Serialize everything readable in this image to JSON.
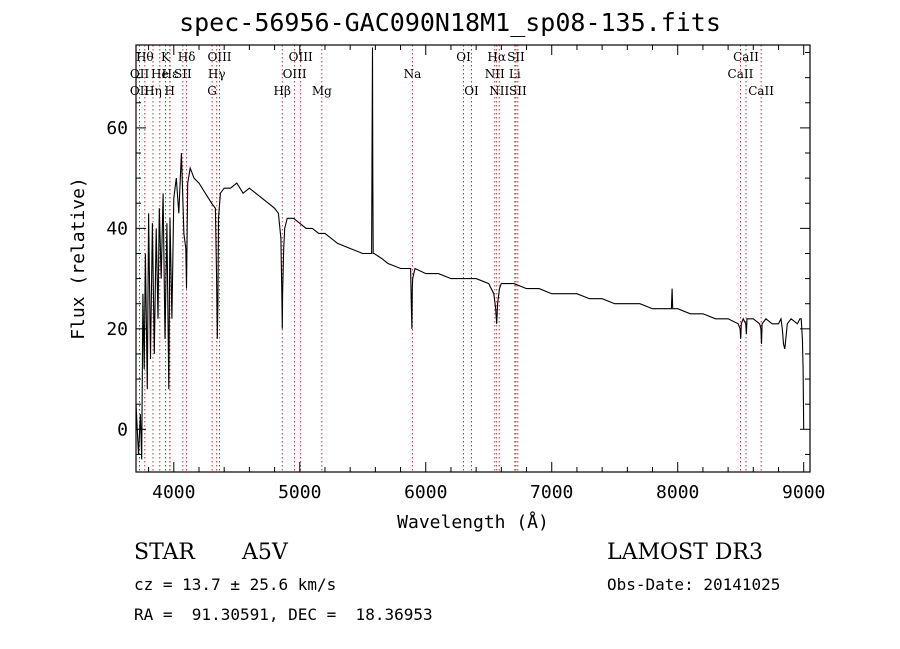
{
  "title": "spec-56956-GAC090N18M1_sp08-135.fits",
  "info": {
    "class": "STAR",
    "subclass": "A5V",
    "survey": "LAMOST DR3",
    "cz": "cz = 13.7 ± 25.6 km/s",
    "obs_date": "Obs-Date: 20141025",
    "coords": "RA =  91.30591, DEC =  18.36953"
  },
  "colors": {
    "line_marker": "#aa2222",
    "spectrum": "#000000"
  },
  "chart_data": {
    "type": "line",
    "title": "spec-56956-GAC090N18M1_sp08-135.fits",
    "xlabel": "Wavelength (Å)",
    "ylabel": "Flux (relative)",
    "xlim": [
      3700,
      9050
    ],
    "ylim": [
      -8.5,
      76.5
    ],
    "xticks": [
      4000,
      5000,
      6000,
      7000,
      8000,
      9000
    ],
    "yticks": [
      0,
      20,
      40,
      60
    ],
    "series": [
      {
        "name": "flux",
        "x": [
          3700,
          3720,
          3735,
          3745,
          3755,
          3765,
          3775,
          3790,
          3800,
          3815,
          3830,
          3845,
          3860,
          3875,
          3885,
          3900,
          3915,
          3930,
          3945,
          3960,
          3970,
          3985,
          4000,
          4020,
          4040,
          4060,
          4080,
          4095,
          4101,
          4110,
          4130,
          4160,
          4200,
          4250,
          4300,
          4330,
          4340,
          4345,
          4350,
          4355,
          4370,
          4400,
          4450,
          4500,
          4550,
          4600,
          4650,
          4700,
          4750,
          4800,
          4830,
          4850,
          4858,
          4861,
          4864,
          4872,
          4880,
          4900,
          4950,
          5000,
          5050,
          5100,
          5150,
          5200,
          5300,
          5400,
          5500,
          5570,
          5575,
          5577,
          5580,
          5583,
          5590,
          5650,
          5700,
          5800,
          5880,
          5885,
          5890,
          5893,
          5896,
          5905,
          5915,
          6000,
          6100,
          6200,
          6300,
          6400,
          6500,
          6540,
          6555,
          6563,
          6570,
          6585,
          6600,
          6700,
          6800,
          6900,
          7000,
          7100,
          7200,
          7300,
          7400,
          7500,
          7600,
          7700,
          7800,
          7900,
          7950,
          7955,
          7960,
          7970,
          8000,
          8100,
          8200,
          8300,
          8400,
          8480,
          8495,
          8500,
          8505,
          8520,
          8540,
          8545,
          8550,
          8600,
          8650,
          8660,
          8665,
          8670,
          8700,
          8750,
          8800,
          8820,
          8830,
          8840,
          8850,
          8870,
          8900,
          8950,
          8970,
          8980,
          8990,
          8995,
          9000
        ],
        "values": [
          5,
          -5,
          3,
          -6,
          27,
          12,
          35,
          8,
          43,
          14,
          41,
          15,
          40,
          22,
          44,
          30,
          47,
          18,
          41,
          8,
          42,
          22,
          46,
          50,
          43,
          55,
          39,
          36,
          28,
          49,
          52,
          50,
          49,
          47,
          45,
          44,
          30,
          18,
          25,
          42,
          47,
          48,
          48,
          49,
          47,
          48,
          47,
          46,
          45,
          44,
          43,
          38,
          26,
          20,
          27,
          36,
          40,
          42,
          42,
          41,
          40,
          40,
          39,
          39,
          37,
          36,
          35,
          35,
          63,
          76,
          50,
          35,
          35,
          34,
          33,
          32,
          32,
          25,
          20,
          28,
          30,
          31,
          32,
          31,
          31,
          30,
          30,
          30,
          29,
          27,
          24,
          21,
          25,
          28,
          29,
          29,
          28,
          28,
          27,
          27,
          27,
          26,
          26,
          25,
          25,
          25,
          24,
          24,
          24,
          28,
          24,
          24,
          24,
          23,
          23,
          22,
          22,
          21,
          20,
          18,
          21,
          22,
          21,
          19,
          22,
          22,
          21,
          20,
          17,
          21,
          22,
          21,
          21,
          22,
          20,
          17,
          16,
          21,
          22,
          21,
          22,
          22,
          18,
          12,
          0
        ]
      }
    ],
    "line_labels": [
      {
        "x": 3728,
        "label": "OII",
        "row": 1
      },
      {
        "x": 3728,
        "label": "OII",
        "row": 2
      },
      {
        "x": 3770,
        "label": "Hθ",
        "row": 0
      },
      {
        "x": 3835,
        "label": "Hη",
        "row": 2
      },
      {
        "x": 3889,
        "label": "He",
        "row": 1
      },
      {
        "x": 3934,
        "label": "K",
        "row": 0
      },
      {
        "x": 3968,
        "label": "H",
        "row": 2
      },
      {
        "x": 3970,
        "label": "Hε",
        "row": 1
      },
      {
        "x": 4072,
        "label": "SII",
        "row": 1
      },
      {
        "x": 4102,
        "label": "Hδ",
        "row": 0
      },
      {
        "x": 4304,
        "label": "G",
        "row": 2
      },
      {
        "x": 4341,
        "label": "Hγ",
        "row": 1
      },
      {
        "x": 4363,
        "label": "OIII",
        "row": 0
      },
      {
        "x": 4861,
        "label": "Hβ",
        "row": 2
      },
      {
        "x": 4959,
        "label": "OIII",
        "row": 1
      },
      {
        "x": 5007,
        "label": "OIII",
        "row": 0
      },
      {
        "x": 5175,
        "label": "Mg",
        "row": 2
      },
      {
        "x": 5894,
        "label": "Na",
        "row": 1
      },
      {
        "x": 6300,
        "label": "OI",
        "row": 0
      },
      {
        "x": 6363,
        "label": "OI",
        "row": 2
      },
      {
        "x": 6548,
        "label": "NII",
        "row": 1
      },
      {
        "x": 6563,
        "label": "Hα",
        "row": 0
      },
      {
        "x": 6583,
        "label": "NII",
        "row": 2
      },
      {
        "x": 6707,
        "label": "Li",
        "row": 1
      },
      {
        "x": 6716,
        "label": "SII",
        "row": 0
      },
      {
        "x": 6731,
        "label": "SII",
        "row": 2
      },
      {
        "x": 8498,
        "label": "CaII",
        "row": 1
      },
      {
        "x": 8542,
        "label": "CaII",
        "row": 0
      },
      {
        "x": 8662,
        "label": "CaII",
        "row": 2
      }
    ]
  }
}
